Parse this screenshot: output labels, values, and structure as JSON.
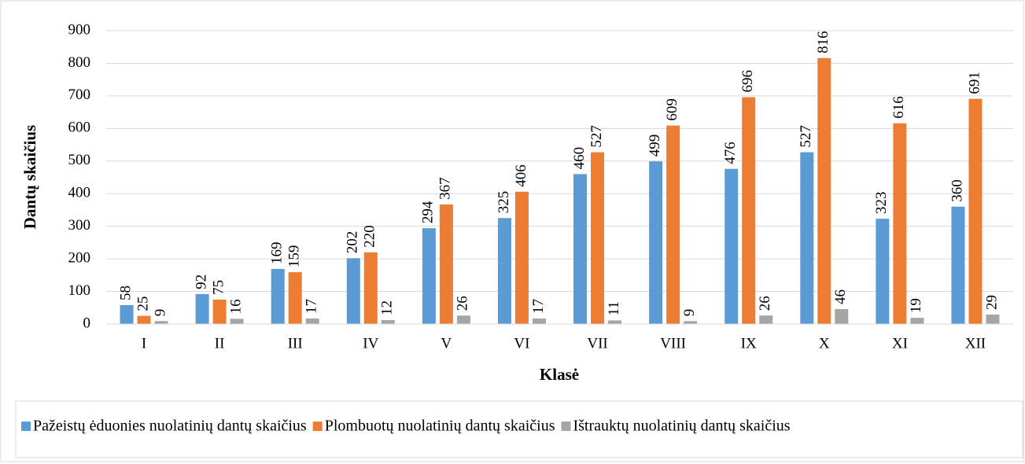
{
  "chart_data": {
    "type": "bar",
    "x_label": "Klasė",
    "y_label": "Dantų skaičius",
    "categories": [
      "I",
      "II",
      "III",
      "IV",
      "V",
      "VI",
      "VII",
      "VIII",
      "IX",
      "X",
      "XI",
      "XII"
    ],
    "series": [
      {
        "name": "Pažeistų ėduonies nuolatinių dantų skaičius",
        "color": "#5b9bd5",
        "values": [
          58,
          92,
          169,
          202,
          294,
          325,
          460,
          499,
          476,
          527,
          323,
          360
        ]
      },
      {
        "name": "Plombuotų nuolatinių dantų skaičius",
        "color": "#ed7d31",
        "values": [
          25,
          75,
          159,
          220,
          367,
          406,
          527,
          609,
          696,
          816,
          616,
          691
        ]
      },
      {
        "name": "Ištrauktų nuolatinių dantų skaičius",
        "color": "#a5a5a5",
        "values": [
          9,
          16,
          17,
          12,
          26,
          17,
          11,
          9,
          26,
          46,
          19,
          29
        ]
      }
    ],
    "ylim": [
      0,
      900
    ],
    "yticks": [
      0,
      100,
      200,
      300,
      400,
      500,
      600,
      700,
      800,
      900
    ],
    "grid": true,
    "legend": "bottom"
  }
}
